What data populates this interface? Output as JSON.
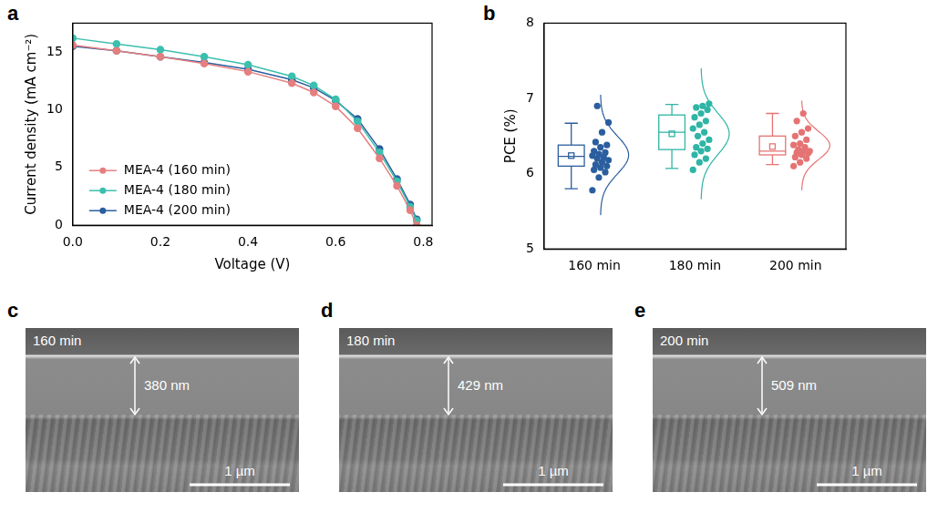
{
  "chart_data": [
    {
      "panel": "a",
      "type": "line",
      "x_label": "Voltage (V)",
      "y_label": "Current density (mA cm⁻²)",
      "x": [
        0,
        0.1,
        0.2,
        0.3,
        0.4,
        0.5,
        0.55,
        0.6,
        0.65,
        0.7,
        0.74,
        0.77,
        0.785
      ],
      "series": [
        {
          "name": "MEA-4 (160 min)",
          "color": "#e57f7f",
          "values": [
            15.6,
            15.1,
            14.6,
            14.0,
            13.3,
            12.3,
            11.5,
            10.3,
            8.4,
            5.8,
            3.4,
            1.3,
            0.0
          ]
        },
        {
          "name": "MEA-4 (180 min)",
          "color": "#3cbfae",
          "values": [
            16.2,
            15.7,
            15.2,
            14.6,
            13.9,
            12.9,
            12.1,
            10.9,
            9.0,
            6.3,
            3.8,
            1.6,
            0.4
          ]
        },
        {
          "name": "MEA-4 (200 min)",
          "color": "#2b5e9e",
          "values": [
            15.5,
            15.1,
            14.6,
            14.1,
            13.5,
            12.6,
            11.9,
            10.8,
            9.2,
            6.6,
            4.0,
            1.8,
            0.5
          ]
        }
      ],
      "xlim": [
        0,
        0.82
      ],
      "xticks": [
        {
          "value": 0,
          "label": "0.0"
        },
        0.2,
        0.4,
        0.6,
        0.8
      ],
      "ylim": [
        0,
        17.5
      ],
      "yticks": [
        0,
        5,
        10,
        15
      ],
      "grid": false,
      "legend": "lower left",
      "marker": "circle"
    },
    {
      "panel": "b",
      "type": "box",
      "y_label": "PCE (%)",
      "categories": [
        "160 min",
        "180 min",
        "200 min"
      ],
      "colors": [
        "#2b5e9e",
        "#2fb5a5",
        "#e57373"
      ],
      "boxes": [
        {
          "whisker_low": 5.8,
          "q1": 6.1,
          "median": 6.23,
          "q3": 6.38,
          "whisker_high": 6.67,
          "mean": 6.24
        },
        {
          "whisker_low": 6.07,
          "q1": 6.32,
          "median": 6.55,
          "q3": 6.78,
          "whisker_high": 6.92,
          "mean": 6.53
        },
        {
          "whisker_low": 6.12,
          "q1": 6.25,
          "median": 6.3,
          "q3": 6.5,
          "whisker_high": 6.8,
          "mean": 6.36
        }
      ],
      "values": [
        [
          5.78,
          5.95,
          6.02,
          6.05,
          6.08,
          6.1,
          6.12,
          6.15,
          6.18,
          6.2,
          6.22,
          6.24,
          6.26,
          6.28,
          6.3,
          6.35,
          6.38,
          6.42,
          6.55,
          6.68,
          6.9
        ],
        [
          6.05,
          6.15,
          6.2,
          6.25,
          6.3,
          6.33,
          6.35,
          6.4,
          6.45,
          6.5,
          6.55,
          6.6,
          6.65,
          6.7,
          6.75,
          6.8,
          6.85,
          6.88,
          6.9,
          6.93
        ],
        [
          6.1,
          6.15,
          6.2,
          6.22,
          6.25,
          6.27,
          6.28,
          6.3,
          6.3,
          6.32,
          6.35,
          6.38,
          6.4,
          6.45,
          6.5,
          6.55,
          6.6,
          6.7,
          6.8
        ]
      ],
      "ylim": [
        5,
        8
      ],
      "yticks": [
        5,
        6,
        7,
        8
      ],
      "grid": false
    }
  ],
  "sem_images": [
    {
      "panel": "c",
      "title": "160 min",
      "thickness": "380 nm",
      "scale_bar": "1 µm"
    },
    {
      "panel": "d",
      "title": "180 min",
      "thickness": "429 nm",
      "scale_bar": "1 µm"
    },
    {
      "panel": "e",
      "title": "200 min",
      "thickness": "509 nm",
      "scale_bar": "1 µm"
    }
  ]
}
